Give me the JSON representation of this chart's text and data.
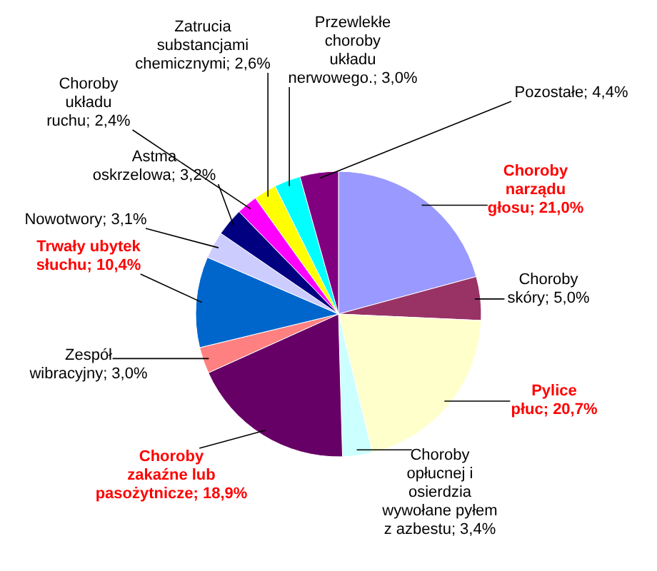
{
  "chart_data": {
    "type": "pie",
    "categories": [
      "Choroby narządu głosu",
      "Choroby skóry",
      "Pylice płuc",
      "Choroby opłucnej i osierdzia wywołane pyłem z azbestu",
      "Choroby zakaźne lub pasożytnicze",
      "Zespół wibracyjny",
      "Trwały ubytek słuchu",
      "Nowotwory",
      "Astma oskrzelowa",
      "Choroby układu ruchu",
      "Zatrucia substancjami chemicznymi",
      "Przewlekłe choroby układu nerwowego.",
      "Pozostałe"
    ],
    "values": [
      21.0,
      5.0,
      20.7,
      3.4,
      18.9,
      3.0,
      10.4,
      3.1,
      3.2,
      2.4,
      2.6,
      3.0,
      4.4
    ],
    "value_labels": [
      "21,0%",
      "5,0%",
      "20,7%",
      "3,4%",
      "18,9%",
      "3,0%",
      "10,4%",
      "3,1%",
      "3,2%",
      "2,4%",
      "2,6%",
      "3,0%",
      "4,4%"
    ],
    "colors": [
      "#9999ff",
      "#993366",
      "#ffffcc",
      "#ccffff",
      "#660066",
      "#ff8080",
      "#0066cc",
      "#ccccff",
      "#000080",
      "#ff00ff",
      "#ffff00",
      "#00ffff",
      "#800080"
    ]
  }
}
